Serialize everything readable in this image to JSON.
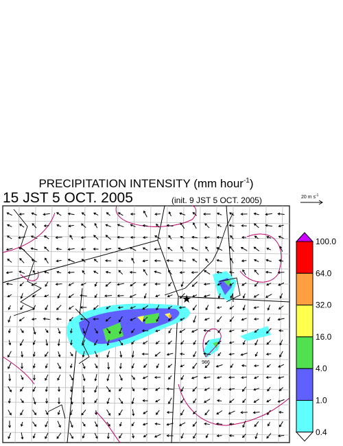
{
  "header": {
    "title": "PRECIPITATION INTENSITY (mm hour",
    "title_exponent": "-1",
    "title_close": ")",
    "valid_time": "15 JST 5 OCT. 2005",
    "init_time": "(init. 9 JST 5 OCT. 2005)"
  },
  "wind_scale": {
    "label": "20 m s",
    "exponent": "-1"
  },
  "map": {
    "pressure_label": "986"
  },
  "colorbar": {
    "labels": [
      "100.0",
      "64.0",
      "32.0",
      "16.0",
      "4.0",
      "1.0",
      "0.4"
    ],
    "colors": [
      "#cc00ff",
      "#ff0000",
      "#ffa040",
      "#ffff50",
      "#50e050",
      "#6060ff",
      "#60ffff",
      "#ffffff"
    ]
  }
}
